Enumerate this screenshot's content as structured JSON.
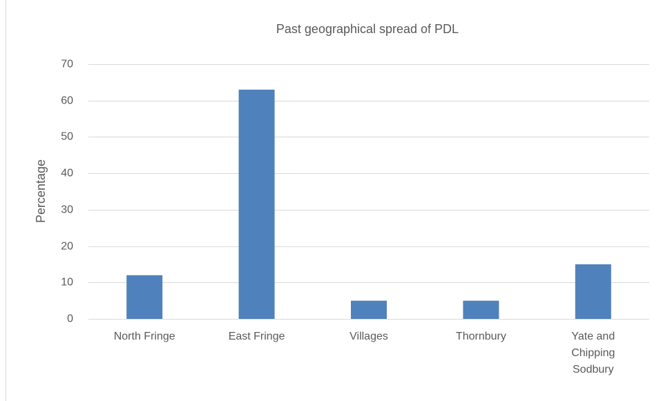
{
  "chart_data": {
    "type": "bar",
    "title": "Past geographical spread of PDL",
    "y_label": "Percentage",
    "categories": [
      "North Fringe",
      "East Fringe",
      "Villages",
      "Thornbury",
      "Yate and Chipping Sodbury"
    ],
    "values": [
      12,
      63,
      5,
      5,
      15
    ],
    "color": "#4f81bd",
    "ylim": [
      0,
      70
    ],
    "yticks": [
      0,
      10,
      20,
      30,
      40,
      50,
      60,
      70
    ],
    "grid": true
  }
}
